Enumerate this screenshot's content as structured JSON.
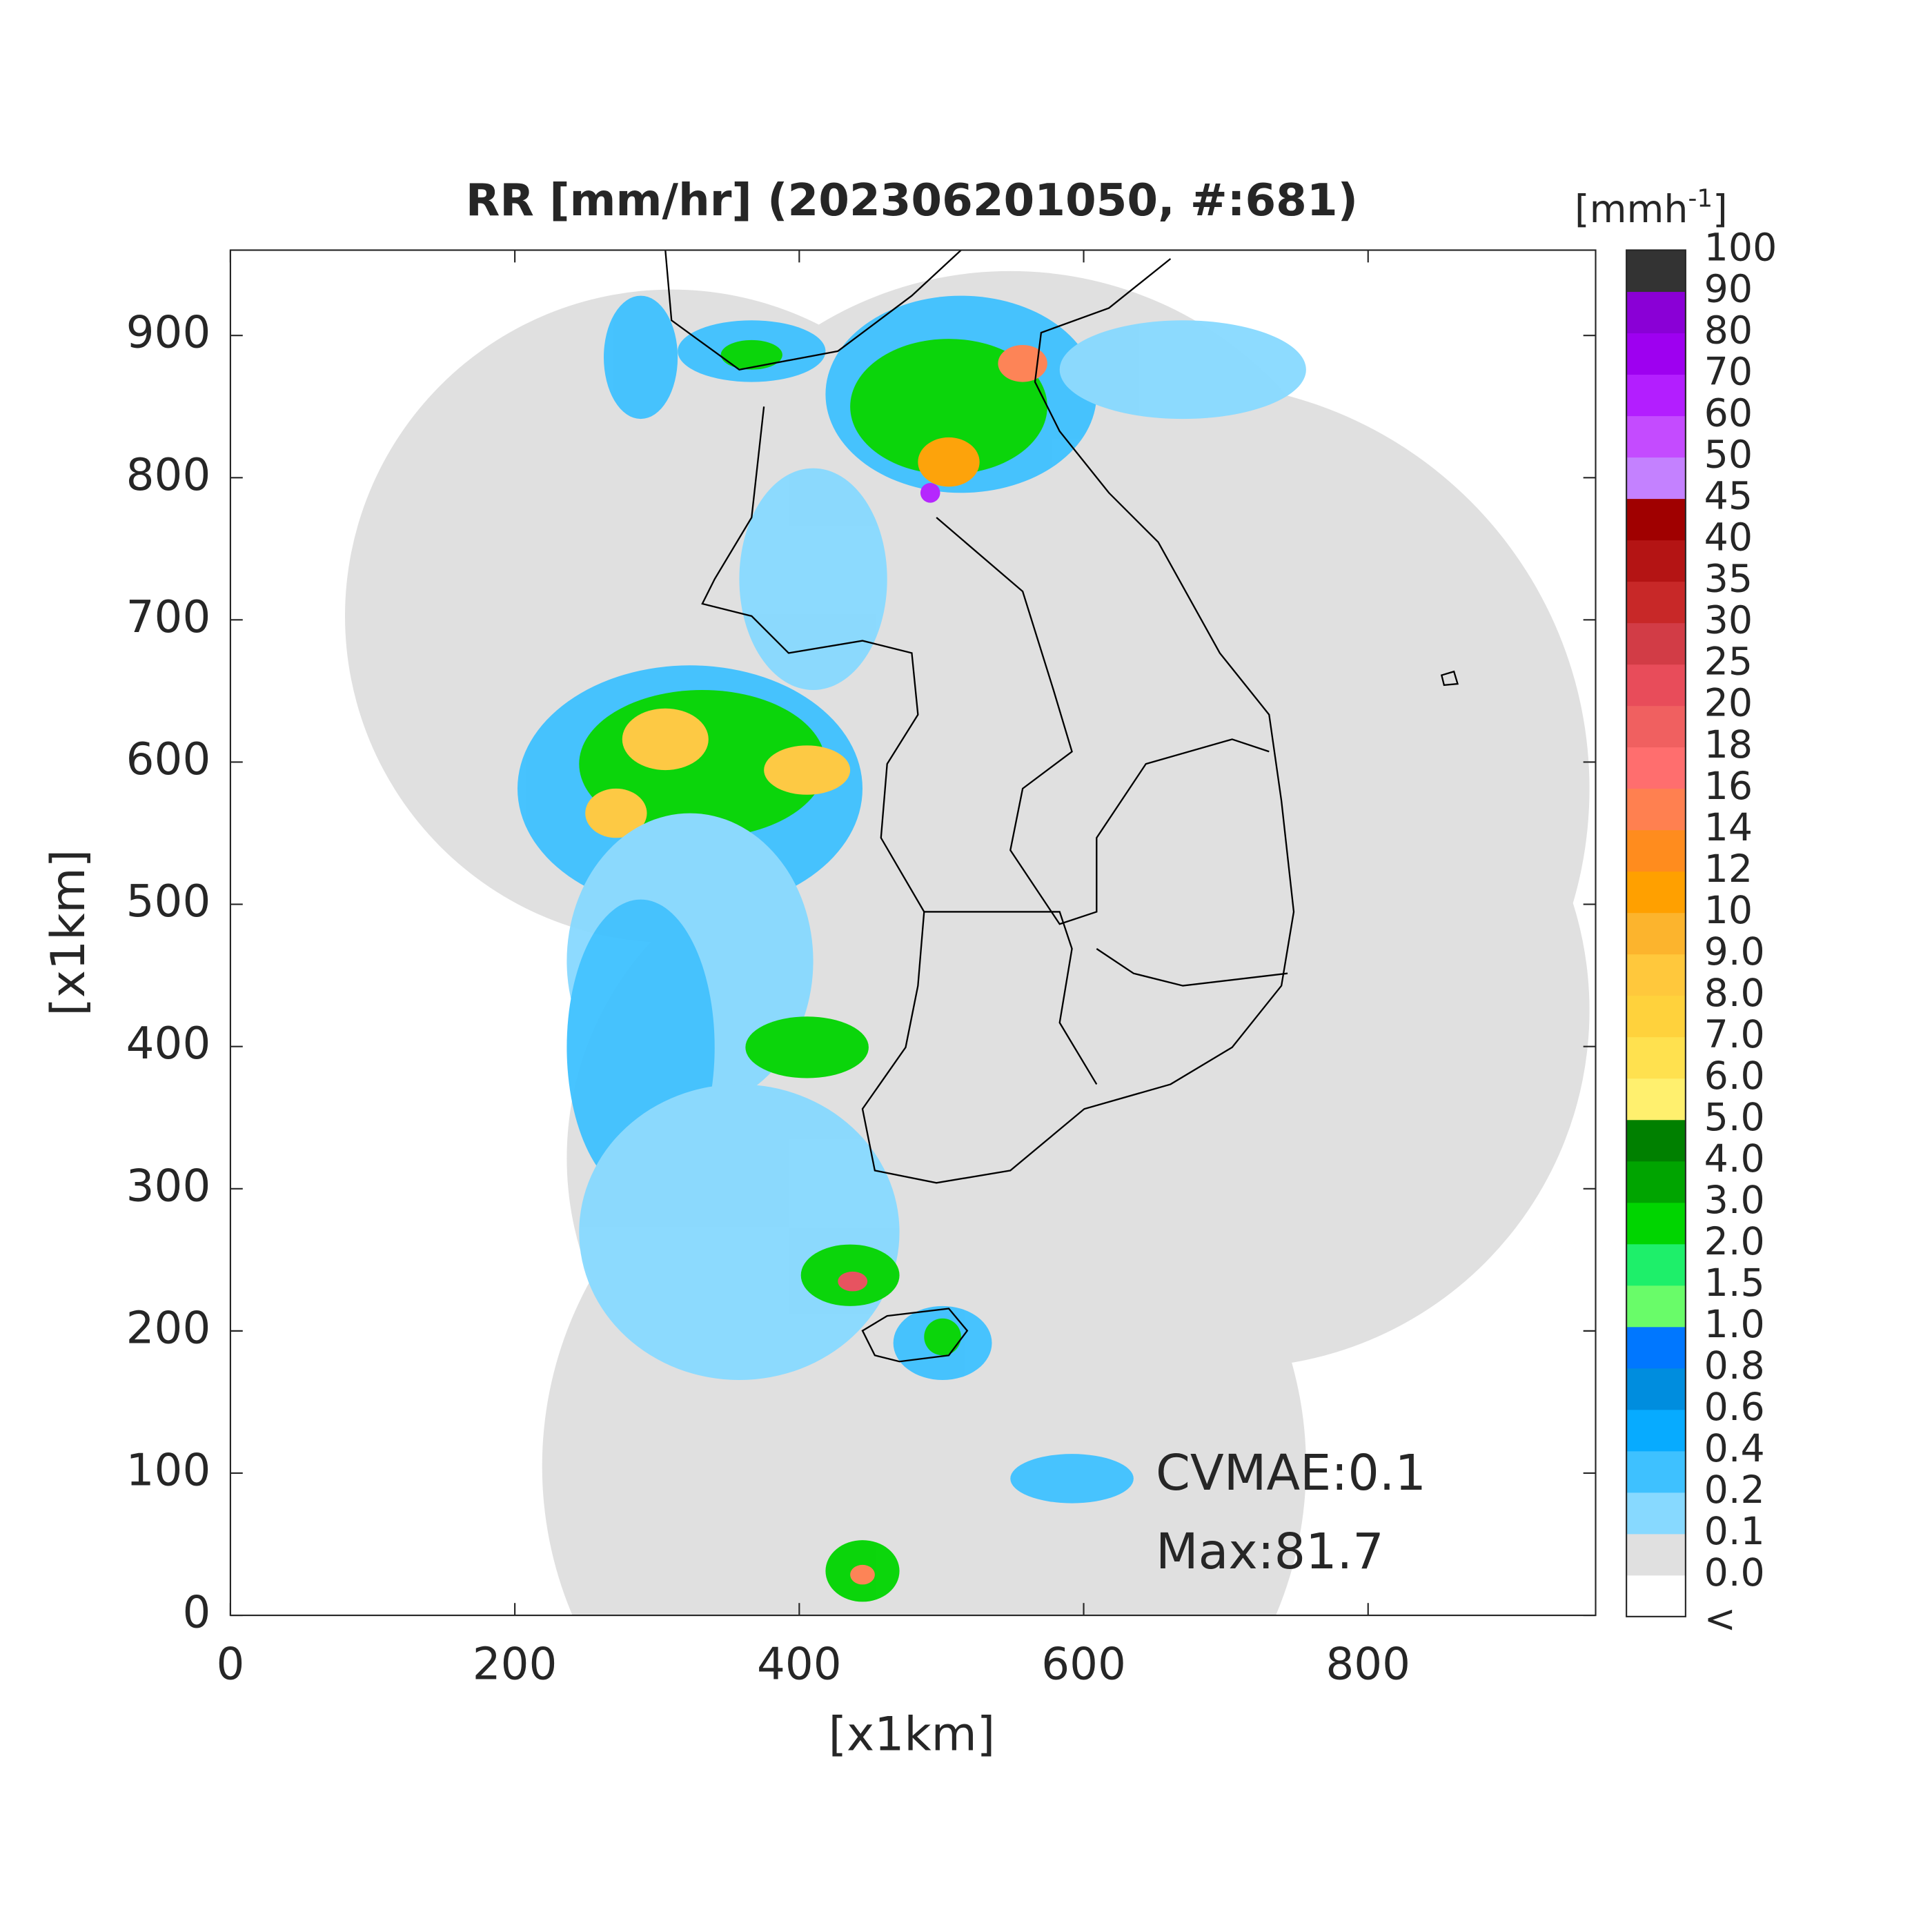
{
  "title": "RR [mm/hr] (202306201050, #:681)",
  "axes": {
    "xlabel": "[x1km]",
    "ylabel": "[x1km]",
    "xlim": [
      0,
      960
    ],
    "ylim": [
      0,
      960
    ],
    "xticks": [
      0,
      200,
      400,
      600,
      800
    ],
    "yticks": [
      0,
      100,
      200,
      300,
      400,
      500,
      600,
      700,
      800,
      900
    ]
  },
  "colorbar": {
    "unit": "[mmh",
    "unit_exponent": "-1",
    "unit_close": "]",
    "labels": [
      "<",
      "0.0",
      "0.1",
      "0.2",
      "0.4",
      "0.6",
      "0.8",
      "1.0",
      "1.5",
      "2.0",
      "3.0",
      "4.0",
      "5.0",
      "6.0",
      "7.0",
      "8.0",
      "9.0",
      "10",
      "12",
      "14",
      "16",
      "18",
      "20",
      "25",
      "30",
      "35",
      "40",
      "45",
      "50",
      "60",
      "70",
      "80",
      "90",
      "100"
    ],
    "colors": [
      "#ffffff",
      "#e0e0e0",
      "#87d9ff",
      "#3ec1ff",
      "#07abff",
      "#008dde",
      "#0077ff",
      "#69fc69",
      "#1eef6a",
      "#00d500",
      "#00a400",
      "#008000",
      "#fff06e",
      "#ffe14f",
      "#ffd23c",
      "#ffc83c",
      "#fcb42d",
      "#ffa000",
      "#ff8c1e",
      "#ff8050",
      "#ff6e6e",
      "#f06060",
      "#e84c5a",
      "#d23c46",
      "#c82828",
      "#b41414",
      "#a00000",
      "#c481ff",
      "#c44bff",
      "#b31eff",
      "#9e00f0",
      "#8a00d6",
      "#333333"
    ]
  },
  "annotations": [
    "CVMAE:0.1",
    "Max:81.7"
  ]
}
